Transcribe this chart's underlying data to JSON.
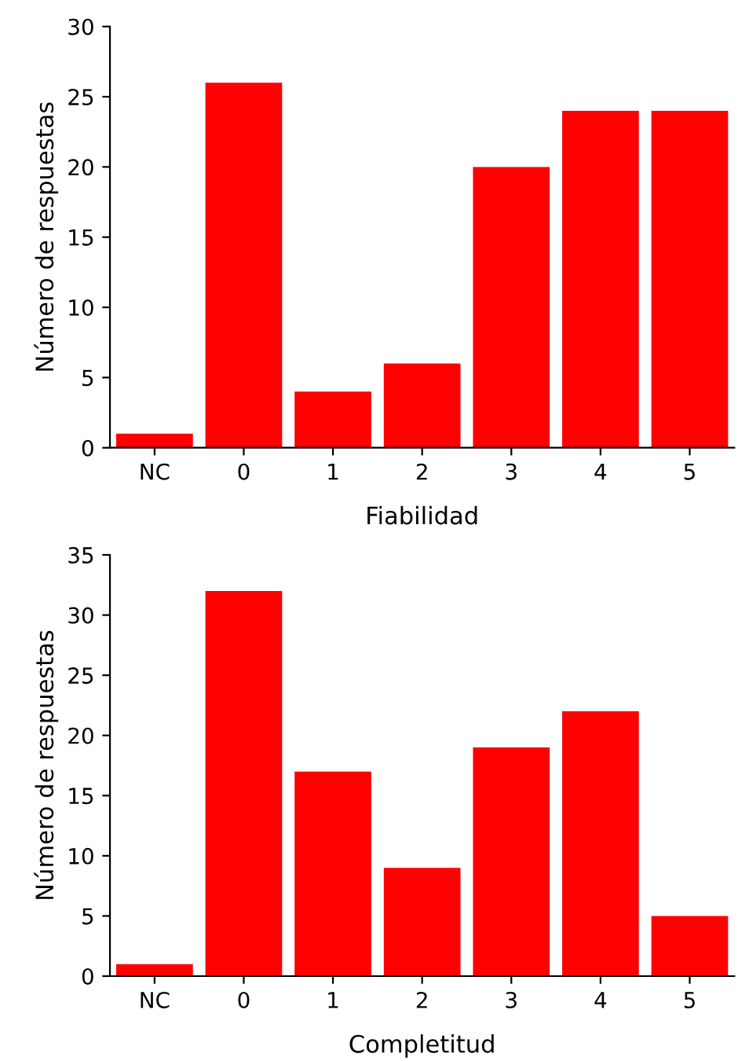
{
  "chart_data": [
    {
      "type": "bar",
      "xlabel": "Fiabilidad",
      "ylabel": "Número de respuestas",
      "categories": [
        "NC",
        "0",
        "1",
        "2",
        "3",
        "4",
        "5"
      ],
      "values": [
        1,
        26,
        4,
        6,
        20,
        24,
        24
      ],
      "color": "#ff0000",
      "ylim": [
        0,
        30
      ],
      "yticks": [
        0,
        5,
        10,
        15,
        20,
        25,
        30
      ],
      "grid": false
    },
    {
      "type": "bar",
      "xlabel": "Completitud",
      "ylabel": "Número de respuestas",
      "categories": [
        "NC",
        "0",
        "1",
        "2",
        "3",
        "4",
        "5"
      ],
      "values": [
        1,
        32,
        17,
        9,
        19,
        22,
        5
      ],
      "color": "#ff0000",
      "ylim": [
        0,
        35
      ],
      "yticks": [
        0,
        5,
        10,
        15,
        20,
        25,
        30,
        35
      ],
      "grid": false
    }
  ]
}
